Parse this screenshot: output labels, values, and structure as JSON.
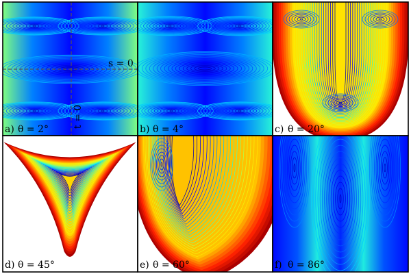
{
  "figure": {
    "panels": [
      {
        "id": "a",
        "tag": "a)",
        "angle": "θ = 2°",
        "guide_h_label": "s = 0",
        "guide_v_label": "t = 0"
      },
      {
        "id": "b",
        "tag": "b)",
        "angle": "θ = 4°"
      },
      {
        "id": "c",
        "tag": "c)",
        "angle": "θ = 20°"
      },
      {
        "id": "d",
        "tag": "d)",
        "angle": "θ = 45°"
      },
      {
        "id": "e",
        "tag": "e)",
        "angle": "θ = 60°"
      },
      {
        "id": "f",
        "tag": "f)",
        "angle": "θ = 86°"
      }
    ],
    "colormap": [
      "#0000aa",
      "#0000ff",
      "#0066ff",
      "#00ccff",
      "#33ffcc",
      "#ccff33",
      "#ffee00",
      "#ff8800",
      "#ff2200",
      "#aa0000"
    ],
    "background": "#ffffff"
  }
}
